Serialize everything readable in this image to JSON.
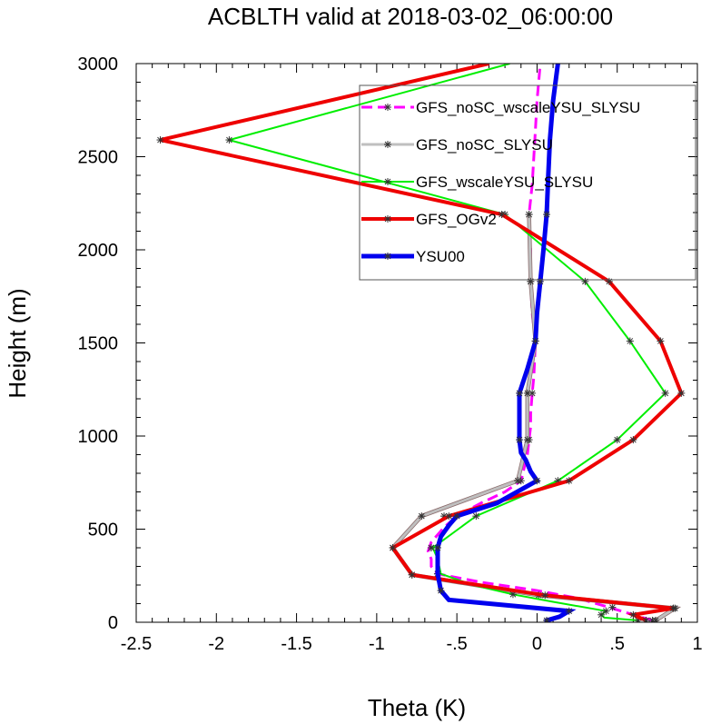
{
  "chart_data": {
    "type": "line",
    "title": "ACBLTH valid at 2018-03-02_06:00:00",
    "xlabel": "Theta (K)",
    "ylabel": "Height (m)",
    "xlim": [
      -2.5,
      1
    ],
    "ylim": [
      0,
      3000
    ],
    "x_ticks": [
      -2.5,
      -2,
      -1.5,
      -1,
      -0.5,
      0,
      0.5,
      1
    ],
    "x_tick_labels": [
      "-2.5",
      "-2",
      "-1.5",
      "-1",
      "-.5",
      "0",
      ".5",
      "1"
    ],
    "y_ticks": [
      0,
      500,
      1000,
      1500,
      2000,
      2500,
      3000
    ],
    "y_tick_labels": [
      "0",
      "500",
      "1000",
      "1500",
      "2000",
      "2500",
      "3000"
    ],
    "grid": false,
    "legend_position": "top-right",
    "series": [
      {
        "name": "GFS_noSC_wscaleYSU_SLYSU",
        "color": "#ff00ff",
        "dash": "dashed",
        "width": 3,
        "points": [
          [
            0.72,
            10
          ],
          [
            0.6,
            40
          ],
          [
            0.45,
            80
          ],
          [
            0.25,
            130
          ],
          [
            0.0,
            170
          ],
          [
            -0.35,
            215
          ],
          [
            -0.62,
            260
          ],
          [
            -0.66,
            300
          ],
          [
            -0.66,
            340
          ],
          [
            -0.68,
            380
          ],
          [
            -0.66,
            430
          ],
          [
            -0.58,
            510
          ],
          [
            -0.5,
            570
          ],
          [
            -0.35,
            640
          ],
          [
            -0.2,
            700
          ],
          [
            -0.1,
            760
          ],
          [
            -0.08,
            830
          ],
          [
            -0.06,
            900
          ],
          [
            -0.05,
            980
          ],
          [
            -0.04,
            1050
          ],
          [
            -0.04,
            1120
          ],
          [
            -0.03,
            1230
          ],
          [
            -0.02,
            1320
          ],
          [
            -0.01,
            1510
          ],
          [
            -0.03,
            1660
          ],
          [
            -0.04,
            1830
          ],
          [
            -0.04,
            2000
          ],
          [
            -0.05,
            2190
          ],
          [
            -0.03,
            2350
          ],
          [
            -0.02,
            2500
          ],
          [
            -0.01,
            2650
          ],
          [
            0.0,
            2800
          ],
          [
            0.02,
            3000
          ]
        ],
        "markers": [
          [
            0.72,
            10
          ],
          [
            0.47,
            80
          ],
          [
            -0.62,
            260
          ],
          [
            -0.66,
            400
          ],
          [
            -0.58,
            570
          ],
          [
            -0.1,
            760
          ],
          [
            -0.05,
            980
          ],
          [
            -0.03,
            1230
          ],
          [
            -0.01,
            1510
          ],
          [
            -0.04,
            1830
          ],
          [
            -0.05,
            2190
          ]
        ]
      },
      {
        "name": "GFS_noSC_SLYSU",
        "color": "#bfbfbf",
        "dash": "solid",
        "width": 3,
        "points": [
          [
            0.74,
            10
          ],
          [
            0.86,
            75
          ],
          [
            0.01,
            145
          ],
          [
            -0.78,
            255
          ],
          [
            -0.9,
            400
          ],
          [
            -0.72,
            570
          ],
          [
            -0.12,
            760
          ],
          [
            -0.06,
            980
          ],
          [
            -0.06,
            1230
          ],
          [
            -0.01,
            1510
          ],
          [
            -0.04,
            1830
          ],
          [
            -0.05,
            2190
          ]
        ],
        "markers": [
          [
            0.74,
            10
          ],
          [
            0.86,
            75
          ],
          [
            0.01,
            145
          ],
          [
            -0.78,
            255
          ],
          [
            -0.9,
            400
          ],
          [
            -0.72,
            570
          ],
          [
            -0.12,
            760
          ],
          [
            -0.06,
            980
          ],
          [
            -0.06,
            1230
          ],
          [
            -0.01,
            1510
          ],
          [
            -0.04,
            1830
          ],
          [
            -0.05,
            2190
          ]
        ]
      },
      {
        "name": "GFS_wscaleYSU_SLYSU",
        "color": "#00ee00",
        "dash": "solid",
        "width": 2,
        "points": [
          [
            0.63,
            10
          ],
          [
            0.42,
            25
          ],
          [
            0.4,
            40
          ],
          [
            0.43,
            60
          ],
          [
            0.1,
            110
          ],
          [
            -0.15,
            150
          ],
          [
            -0.4,
            200
          ],
          [
            -0.6,
            260
          ],
          [
            -0.62,
            340
          ],
          [
            -0.65,
            400
          ],
          [
            -0.38,
            570
          ],
          [
            0.13,
            760
          ],
          [
            0.5,
            980
          ],
          [
            0.8,
            1230
          ],
          [
            0.58,
            1510
          ],
          [
            0.3,
            1830
          ],
          [
            -0.2,
            2190
          ],
          [
            -1.92,
            2590
          ],
          [
            -0.17,
            3000
          ]
        ],
        "markers": [
          [
            0.63,
            10
          ],
          [
            0.4,
            40
          ],
          [
            0.43,
            60
          ],
          [
            -0.15,
            150
          ],
          [
            -0.62,
            260
          ],
          [
            -0.66,
            400
          ],
          [
            -0.38,
            570
          ],
          [
            0.13,
            760
          ],
          [
            0.5,
            980
          ],
          [
            0.8,
            1230
          ],
          [
            0.58,
            1510
          ],
          [
            0.3,
            1830
          ],
          [
            -0.2,
            2190
          ],
          [
            -1.92,
            2590
          ]
        ]
      },
      {
        "name": "GFS_OGv2",
        "color": "#ee0000",
        "dash": "solid",
        "width": 4,
        "points": [
          [
            0.68,
            10
          ],
          [
            0.6,
            40
          ],
          [
            0.85,
            75
          ],
          [
            0.05,
            145
          ],
          [
            -0.78,
            255
          ],
          [
            -0.9,
            400
          ],
          [
            -0.55,
            570
          ],
          [
            0.2,
            760
          ],
          [
            0.6,
            980
          ],
          [
            0.9,
            1230
          ],
          [
            0.77,
            1510
          ],
          [
            0.45,
            1830
          ],
          [
            -0.22,
            2190
          ],
          [
            -2.35,
            2590
          ],
          [
            -0.3,
            3000
          ]
        ],
        "markers": [
          [
            0.68,
            10
          ],
          [
            0.6,
            40
          ],
          [
            0.85,
            75
          ],
          [
            0.05,
            145
          ],
          [
            -0.78,
            255
          ],
          [
            -0.9,
            400
          ],
          [
            -0.55,
            570
          ],
          [
            0.2,
            760
          ],
          [
            0.6,
            980
          ],
          [
            0.9,
            1230
          ],
          [
            0.77,
            1510
          ],
          [
            0.45,
            1830
          ],
          [
            -0.22,
            2190
          ],
          [
            -2.35,
            2590
          ]
        ]
      },
      {
        "name": "YSU00",
        "color": "#0000ee",
        "dash": "solid",
        "width": 5,
        "points": [
          [
            0.06,
            0
          ],
          [
            0.06,
            10
          ],
          [
            0.14,
            30
          ],
          [
            0.2,
            60
          ],
          [
            -0.55,
            120
          ],
          [
            -0.6,
            170
          ],
          [
            -0.62,
            260
          ],
          [
            -0.62,
            340
          ],
          [
            -0.62,
            400
          ],
          [
            -0.6,
            460
          ],
          [
            -0.55,
            520
          ],
          [
            -0.5,
            570
          ],
          [
            -0.25,
            640
          ],
          [
            0.0,
            760
          ],
          [
            -0.04,
            810
          ],
          [
            -0.07,
            870
          ],
          [
            -0.1,
            910
          ],
          [
            -0.11,
            980
          ],
          [
            -0.11,
            1100
          ],
          [
            -0.11,
            1230
          ],
          [
            -0.06,
            1360
          ],
          [
            -0.01,
            1510
          ],
          [
            0.0,
            1660
          ],
          [
            0.02,
            1830
          ],
          [
            0.04,
            2000
          ],
          [
            0.06,
            2190
          ],
          [
            0.07,
            2400
          ],
          [
            0.08,
            2590
          ],
          [
            0.1,
            2800
          ],
          [
            0.13,
            3000
          ]
        ],
        "markers": [
          [
            0.06,
            10
          ],
          [
            0.2,
            60
          ],
          [
            -0.6,
            170
          ],
          [
            -0.62,
            400
          ],
          [
            -0.5,
            570
          ],
          [
            0.0,
            760
          ],
          [
            -0.11,
            980
          ],
          [
            -0.11,
            1230
          ],
          [
            -0.01,
            1510
          ],
          [
            0.02,
            1830
          ],
          [
            0.06,
            2190
          ]
        ]
      }
    ]
  }
}
